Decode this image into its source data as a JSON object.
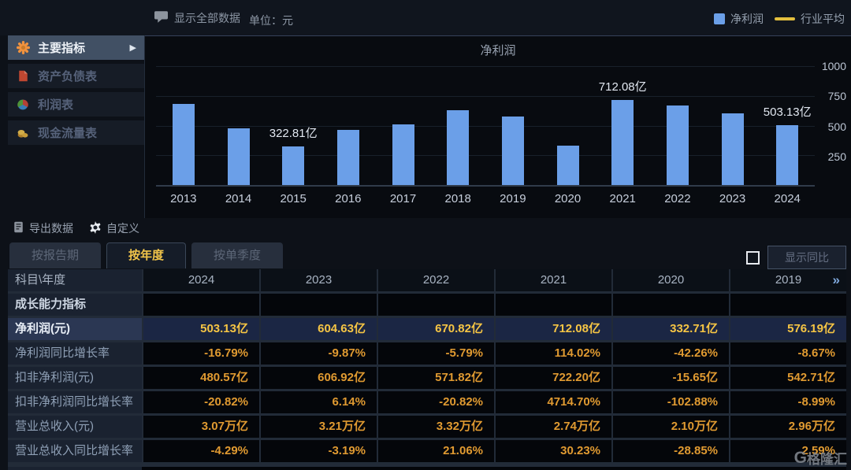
{
  "top_bar": {
    "show_all_label": "显示全部数据",
    "unit_label": "单位：元",
    "legend": [
      {
        "name": "net-profit",
        "label": "净利润",
        "swatch": "square",
        "color": "#6b9fe8"
      },
      {
        "name": "industry-average",
        "label": "行业平均",
        "swatch": "line",
        "color": "#e3bf3e"
      }
    ]
  },
  "sidebar": {
    "items": [
      {
        "name": "main-indicators",
        "label": "主要指标",
        "icon": "flower-icon",
        "active": true
      },
      {
        "name": "balance-sheet",
        "label": "资产负债表",
        "icon": "document-icon",
        "active": false
      },
      {
        "name": "income-statement",
        "label": "利润表",
        "icon": "pie-icon",
        "active": false
      },
      {
        "name": "cash-flow-statement",
        "label": "现金流量表",
        "icon": "coins-icon",
        "active": false
      }
    ]
  },
  "chart_data": {
    "type": "bar",
    "title": "净利润",
    "unit": "亿",
    "categories": [
      "2013",
      "2014",
      "2015",
      "2016",
      "2017",
      "2018",
      "2019",
      "2020",
      "2021",
      "2022",
      "2023",
      "2024"
    ],
    "values": [
      680,
      478,
      322.81,
      465,
      512,
      632,
      576.19,
      332.71,
      712.08,
      670.82,
      604.63,
      503.13
    ],
    "bar_labels": {
      "2015": "322.81亿",
      "2021": "712.08亿",
      "2024": "503.13亿"
    },
    "ylim": [
      0,
      1000
    ],
    "yticks": [
      250,
      500,
      750,
      1000
    ],
    "bar_color": "#6b9fe8",
    "grid": true,
    "legend_position": "top-right"
  },
  "toolbar": {
    "export_label": "导出数据",
    "customize_label": "自定义"
  },
  "tabs": [
    {
      "name": "by-report-period",
      "label": "按报告期",
      "active": false
    },
    {
      "name": "by-year",
      "label": "按年度",
      "active": true
    },
    {
      "name": "by-quarter",
      "label": "按单季度",
      "active": false
    }
  ],
  "yoy": {
    "label": "显示同比",
    "checked": false
  },
  "table": {
    "corner_header": "科目\\年度",
    "year_columns": [
      "2024",
      "2023",
      "2022",
      "2021",
      "2020",
      "2019"
    ],
    "rows": [
      {
        "name": "growth-section",
        "type": "section",
        "label": "成长能力指标",
        "values": [
          "",
          "",
          "",
          "",
          "",
          ""
        ]
      },
      {
        "name": "net-profit",
        "type": "highlight",
        "label": "净利润(元)",
        "values": [
          "503.13亿",
          "604.63亿",
          "670.82亿",
          "712.08亿",
          "332.71亿",
          "576.19亿"
        ]
      },
      {
        "name": "net-profit-yoy",
        "type": "normal",
        "label": "净利润同比增长率",
        "values": [
          "-16.79%",
          "-9.87%",
          "-5.79%",
          "114.02%",
          "-42.26%",
          "-8.67%"
        ]
      },
      {
        "name": "deducted-net-profit",
        "type": "normal",
        "label": "扣非净利润(元)",
        "values": [
          "480.57亿",
          "606.92亿",
          "571.82亿",
          "722.20亿",
          "-15.65亿",
          "542.71亿"
        ]
      },
      {
        "name": "deducted-net-profit-yoy",
        "type": "normal",
        "label": "扣非净利润同比增长率",
        "values": [
          "-20.82%",
          "6.14%",
          "-20.82%",
          "4714.70%",
          "-102.88%",
          "-8.99%"
        ]
      },
      {
        "name": "total-revenue",
        "type": "normal",
        "label": "营业总收入(元)",
        "values": [
          "3.07万亿",
          "3.21万亿",
          "3.32万亿",
          "2.74万亿",
          "2.10万亿",
          "2.96万亿"
        ]
      },
      {
        "name": "total-revenue-yoy",
        "type": "normal",
        "label": "营业总收入同比增长率",
        "values": [
          "-4.29%",
          "-3.19%",
          "21.06%",
          "30.23%",
          "-28.85%",
          "2.59%"
        ]
      }
    ]
  },
  "watermark": {
    "logo_text": "G",
    "text": "格隆汇"
  }
}
